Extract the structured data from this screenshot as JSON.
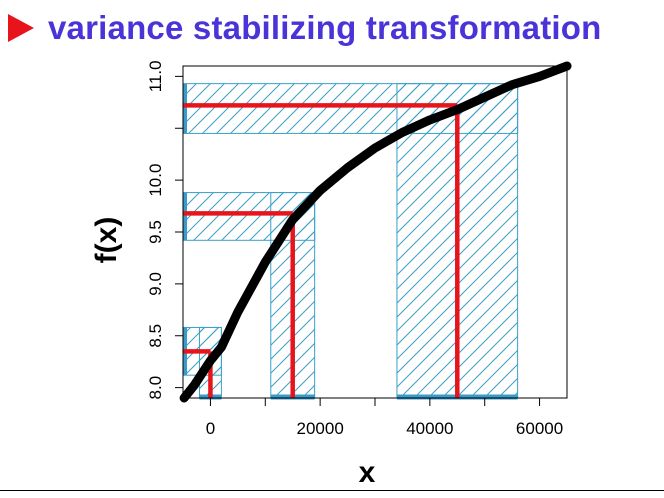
{
  "slide": {
    "title": "variance stabilizing transformation",
    "marker": "triangle-right-icon"
  },
  "colors": {
    "title": "#4a34d8",
    "marker": "#e8141b",
    "curve": "#000000",
    "hatch": "#3aa0c8",
    "guide": "#e8141b",
    "base": "#3a9ac8"
  },
  "chart_data": {
    "type": "line",
    "title": "",
    "xlabel": "x",
    "ylabel": "f(x)",
    "xlim": [
      -5000,
      65000
    ],
    "ylim": [
      7.9,
      11.1
    ],
    "x_ticks": [
      0,
      20000,
      40000,
      60000
    ],
    "x_tick_labels": [
      "0",
      "20000",
      "40000",
      "60000"
    ],
    "y_ticks": [
      8.0,
      8.5,
      9.0,
      9.5,
      10.0,
      10.5,
      11.0
    ],
    "y_tick_labels": [
      "8.0",
      "8.5",
      "9.0",
      "9.5",
      "10.0",
      "",
      "11.0"
    ],
    "curve": {
      "function": "log",
      "x": [
        -4800,
        -3000,
        0,
        2000,
        5000,
        10000,
        15000,
        20000,
        25000,
        30000,
        35000,
        40000,
        45000,
        50000,
        55000,
        60000,
        65000
      ],
      "y": [
        7.9,
        8.02,
        8.26,
        8.39,
        8.73,
        9.21,
        9.62,
        9.9,
        10.12,
        10.31,
        10.46,
        10.58,
        10.68,
        10.8,
        10.92,
        11.0,
        11.1
      ]
    },
    "intervals": [
      {
        "x_center": 0,
        "x_low": -2000,
        "x_high": 2000,
        "y_center": 8.35,
        "y_low": 8.12,
        "y_high": 8.58
      },
      {
        "x_center": 15000,
        "x_low": 11000,
        "x_high": 19000,
        "y_center": 9.68,
        "y_low": 9.42,
        "y_high": 9.88
      },
      {
        "x_center": 45000,
        "x_low": 34000,
        "x_high": 56000,
        "y_center": 10.72,
        "y_low": 10.45,
        "y_high": 10.93
      }
    ]
  }
}
